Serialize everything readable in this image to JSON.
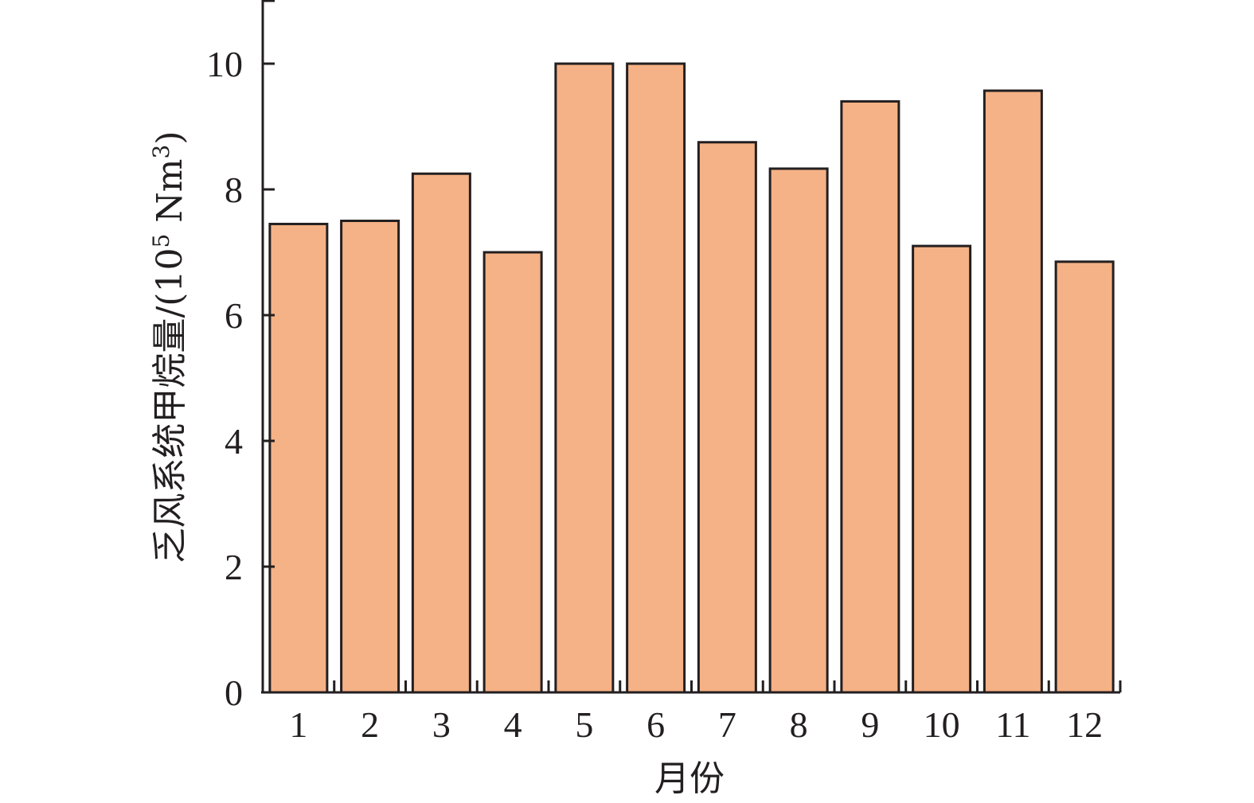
{
  "chart_data": {
    "type": "bar",
    "categories": [
      "1",
      "2",
      "3",
      "4",
      "5",
      "6",
      "7",
      "8",
      "9",
      "10",
      "11",
      "12"
    ],
    "values": [
      7.45,
      7.5,
      8.25,
      7.0,
      10.0,
      10.0,
      8.75,
      8.33,
      9.4,
      7.1,
      9.57,
      6.85
    ],
    "xlabel": "月份",
    "ylabel": "乏风系统甲烷量/(10",
    "ylabel_sup1": "5",
    "ylabel_mid": " Nm",
    "ylabel_sup2": "3",
    "ylabel_end": ")",
    "ylim": [
      0,
      11
    ],
    "yticks": [
      0,
      2,
      4,
      6,
      8,
      10
    ],
    "ytick_labels": [
      "0",
      "2",
      "4",
      "6",
      "8",
      "10"
    ],
    "bar_color": "#f5b286",
    "edge_color": "#231f20",
    "grid": false,
    "legend": "none"
  }
}
